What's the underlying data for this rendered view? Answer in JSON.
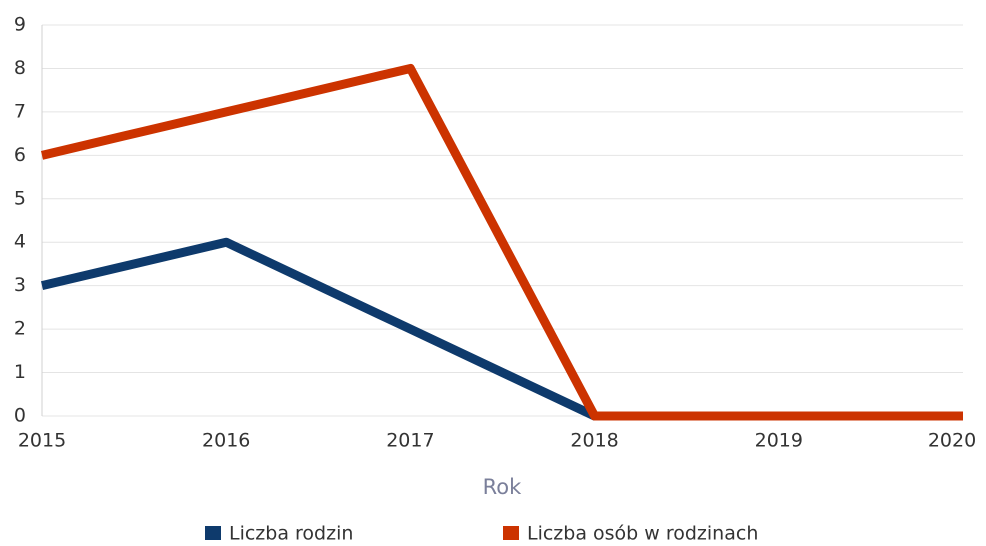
{
  "chart_data": {
    "type": "line",
    "x": [
      2015,
      2016,
      2017,
      2018,
      2019,
      2020
    ],
    "series": [
      {
        "name": "Liczba rodzin",
        "color": "#0e3a6c",
        "values": [
          3,
          4,
          2,
          0,
          0,
          0
        ]
      },
      {
        "name": "Liczba osób w rodzinach",
        "color": "#cc3300",
        "values": [
          6,
          7,
          8,
          0,
          0,
          0
        ]
      }
    ],
    "xlabel": "Rok",
    "xlim": [
      2015,
      2020
    ],
    "xticks": [
      2015,
      2016,
      2017,
      2018,
      2019,
      2020
    ],
    "ylim": [
      0,
      9
    ],
    "yticks": [
      0,
      1,
      2,
      3,
      4,
      5,
      6,
      7,
      8,
      9
    ],
    "grid": true,
    "legend": "bottom"
  }
}
